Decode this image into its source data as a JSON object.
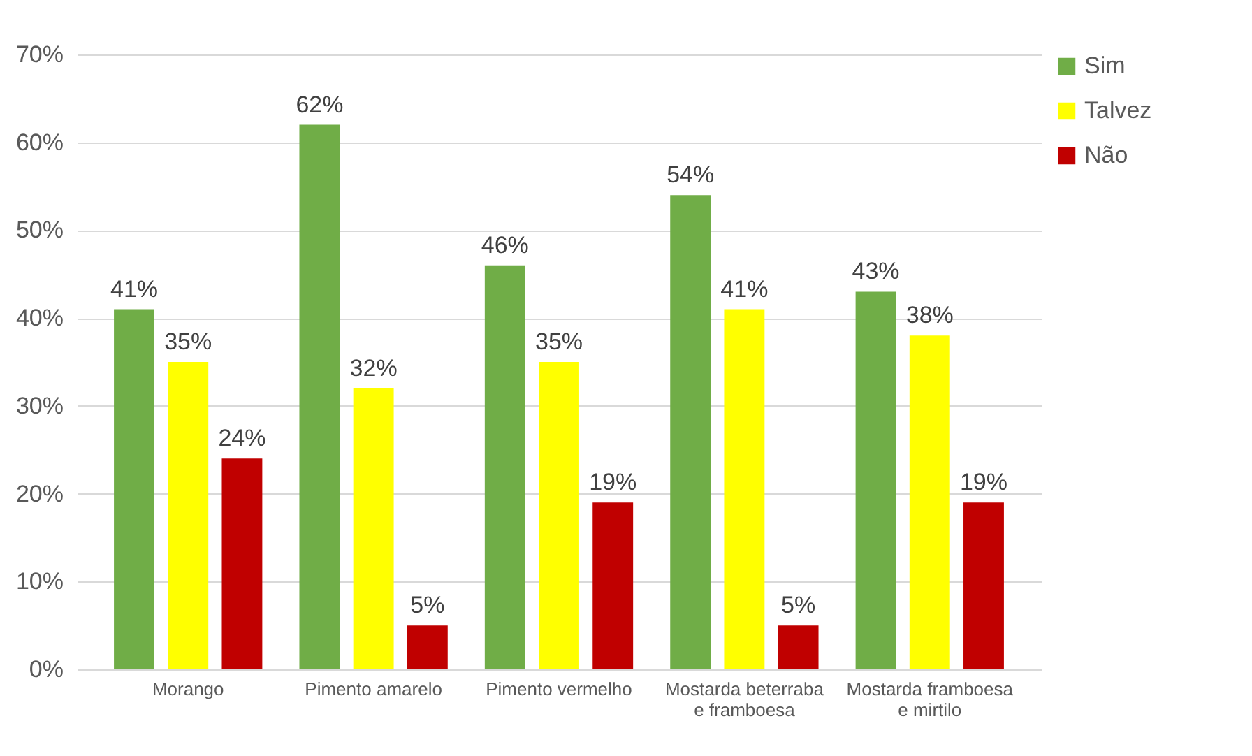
{
  "chart_data": {
    "type": "bar",
    "categories": [
      "Morango",
      "Pimento amarelo",
      "Pimento vermelho",
      "Mostarda beterraba e framboesa",
      "Mostarda framboesa e mirtilo"
    ],
    "series": [
      {
        "name": "Sim",
        "color": "#70ad47",
        "values": [
          41,
          62,
          46,
          54,
          43
        ],
        "value_labels": [
          "41%",
          "62%",
          "46%",
          "54%",
          "43%"
        ]
      },
      {
        "name": "Talvez",
        "color": "#ffff00",
        "values": [
          35,
          32,
          35,
          41,
          38
        ],
        "value_labels": [
          "35%",
          "32%",
          "35%",
          "41%",
          "38%"
        ]
      },
      {
        "name": "Não",
        "color": "#c00000",
        "values": [
          24,
          5,
          19,
          5,
          19
        ],
        "value_labels": [
          "24%",
          "5%",
          "19%",
          "5%",
          "19%"
        ]
      }
    ],
    "ylim": [
      0,
      70
    ],
    "yticks": [
      {
        "value": 0,
        "label": "0%"
      },
      {
        "value": 10,
        "label": "10%"
      },
      {
        "value": 20,
        "label": "20%"
      },
      {
        "value": 30,
        "label": "30%"
      },
      {
        "value": 40,
        "label": "40%"
      },
      {
        "value": 50,
        "label": "50%"
      },
      {
        "value": 60,
        "label": "60%"
      },
      {
        "value": 70,
        "label": "70%"
      }
    ],
    "grid": "y",
    "legend": "right"
  }
}
